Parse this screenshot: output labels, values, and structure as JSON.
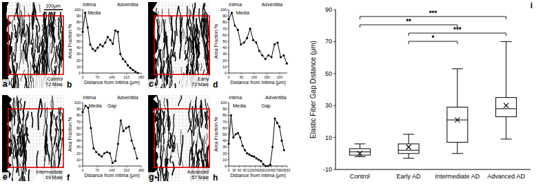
{
  "chart_data": [
    {
      "type": "line",
      "title": "b",
      "color": "#000000",
      "marker": "circle",
      "xlabel": "Distance from Intima (μm)",
      "ylabel": "Area Fraction %",
      "x": [
        0,
        12,
        24,
        36,
        48,
        60,
        72,
        84,
        96,
        108,
        120,
        132,
        144,
        156,
        168,
        180,
        192,
        204,
        216,
        228,
        240,
        252,
        264
      ],
      "values": [
        65,
        95,
        72,
        45,
        38,
        35,
        40,
        45,
        42,
        48,
        57,
        52,
        46,
        67,
        65,
        30,
        22,
        18,
        12,
        8,
        5,
        2,
        0
      ],
      "xlim": [
        0,
        280
      ],
      "ylim": [
        0,
        100
      ],
      "xticks": [
        0,
        70,
        140,
        210,
        280
      ],
      "yticks": [
        0,
        10,
        20,
        30,
        40,
        50,
        60,
        70,
        80,
        90,
        100
      ],
      "annotations": [
        {
          "text": "Intima",
          "x": 0
        },
        {
          "text": "Media",
          "x": 55
        },
        {
          "text": "Adventitia",
          "x": 215
        }
      ]
    },
    {
      "type": "line",
      "title": "d",
      "color": "#000000",
      "marker": "circle",
      "xlabel": "Distance from Intima (μm)",
      "ylabel": "Area Fraction %",
      "x": [
        0,
        12,
        24,
        36,
        48,
        60,
        72,
        84,
        96,
        108,
        120,
        132,
        144,
        156,
        168,
        180,
        192,
        204,
        216,
        228
      ],
      "values": [
        85,
        95,
        75,
        68,
        45,
        48,
        55,
        70,
        52,
        48,
        35,
        28,
        22,
        28,
        25,
        45,
        48,
        25,
        28,
        15
      ],
      "xlim": [
        0,
        230
      ],
      "ylim": [
        0,
        100
      ],
      "xticks": [
        0,
        50,
        100,
        150,
        200
      ],
      "yticks": [
        0,
        10,
        20,
        30,
        40,
        50,
        60,
        70,
        80,
        90,
        100
      ],
      "annotations": [
        {
          "text": "Intima",
          "x": 0
        },
        {
          "text": "Media",
          "x": 55
        },
        {
          "text": "Adventitia",
          "x": 170
        }
      ]
    },
    {
      "type": "line",
      "title": "f",
      "color": "#000000",
      "marker": "circle",
      "xlabel": "Distance from Intima (μm)",
      "ylabel": "Area Fraction %",
      "x": [
        0,
        13,
        26,
        39,
        52,
        65,
        78,
        91,
        104,
        117,
        130,
        143,
        156,
        169,
        182,
        195,
        208,
        221,
        234,
        247,
        260
      ],
      "values": [
        85,
        95,
        92,
        60,
        28,
        22,
        18,
        15,
        20,
        22,
        20,
        5,
        8,
        35,
        72,
        55,
        60,
        62,
        40,
        28,
        12
      ],
      "xlim": [
        0,
        280
      ],
      "ylim": [
        0,
        100
      ],
      "xticks": [
        0,
        70,
        140,
        210,
        280
      ],
      "yticks": [
        0,
        10,
        20,
        30,
        40,
        50,
        60,
        70,
        80,
        90,
        100
      ],
      "annotations": [
        {
          "text": "Intima",
          "x": 0
        },
        {
          "text": "Media",
          "x": 60
        },
        {
          "text": "Gap",
          "x": 140
        },
        {
          "text": "Adventitia",
          "x": 215
        }
      ]
    },
    {
      "type": "line",
      "title": "h",
      "color": "#000000",
      "marker": "circle",
      "xlabel": "Distance from Intima (μm)",
      "ylabel": "Area Fraction %",
      "x": [
        0,
        13,
        26,
        39,
        52,
        65,
        78,
        91,
        104,
        117,
        130,
        143,
        156,
        169,
        182,
        195,
        208,
        221,
        234,
        247,
        260,
        273,
        286,
        299,
        312
      ],
      "values": [
        35,
        80,
        45,
        50,
        52,
        45,
        32,
        25,
        20,
        18,
        16,
        15,
        12,
        10,
        8,
        3,
        0,
        0,
        2,
        30,
        75,
        68,
        62,
        40,
        25
      ],
      "xlim": [
        0,
        330
      ],
      "ylim": [
        0,
        100
      ],
      "xticks": [
        0,
        30,
        60,
        90,
        120,
        150,
        180,
        210,
        240,
        270,
        300,
        330
      ],
      "yticks": [
        0,
        10,
        20,
        30,
        40,
        50,
        60,
        70,
        80,
        90,
        100
      ],
      "annotations": [
        {
          "text": "Intima",
          "x": 0
        },
        {
          "text": "Media",
          "x": 60
        },
        {
          "text": "Gap",
          "x": 210
        },
        {
          "text": "Adventitia",
          "x": 265
        }
      ]
    },
    {
      "type": "box",
      "title": "i",
      "color": "#000000",
      "ylabel": "Elastic Fiber Gap Distance (μm)",
      "categories": [
        "Control",
        "Early AD",
        "Intermediate AD",
        "Advanced AD"
      ],
      "ylim": [
        -10,
        90
      ],
      "yticks": [
        -10,
        10,
        30,
        50,
        70,
        90
      ],
      "boxes": [
        {
          "min": -2,
          "q1": -1,
          "median": 1,
          "q3": 3,
          "max": 6,
          "mean": 0
        },
        {
          "min": -3,
          "q1": 0,
          "median": 2,
          "q3": 6,
          "max": 12,
          "mean": 4
        },
        {
          "min": 0,
          "q1": 7,
          "median": 21,
          "q3": 29,
          "max": 53,
          "mean": 21
        },
        {
          "min": 9,
          "q1": 23,
          "median": 28,
          "q3": 35,
          "max": 70,
          "mean": 30
        }
      ],
      "annotations": [
        {
          "from": 0,
          "to": 3,
          "label": "***"
        },
        {
          "from": 0,
          "to": 2,
          "label": "**"
        },
        {
          "from": 1,
          "to": 3,
          "label": "***"
        },
        {
          "from": 1,
          "to": 2,
          "label": "*"
        }
      ]
    }
  ],
  "micrographs": [
    {
      "panel": "a",
      "caption": [
        "Control",
        "72 Male"
      ]
    },
    {
      "panel": "c",
      "caption": [
        "Early",
        "72 Male"
      ]
    },
    {
      "panel": "e",
      "caption": [
        "Intermediate",
        "69 Male"
      ]
    },
    {
      "panel": "g",
      "caption": [
        "Advanced",
        "57 Male"
      ]
    }
  ],
  "scale_bar": "100μm"
}
